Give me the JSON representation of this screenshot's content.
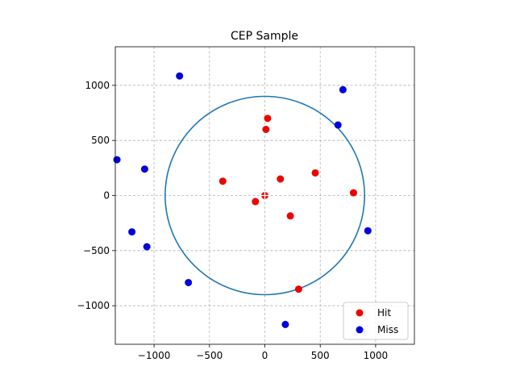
{
  "chart_data": {
    "type": "scatter",
    "title": "CEP Sample",
    "xlabel": "",
    "ylabel": "",
    "xlim": [
      -1350,
      1350
    ],
    "ylim": [
      -1350,
      1350
    ],
    "xticks": [
      -1000,
      -500,
      0,
      500,
      1000
    ],
    "yticks": [
      -1000,
      -500,
      0,
      500,
      1000
    ],
    "xtick_labels": [
      "−1000",
      "−500",
      "0",
      "500",
      "1000"
    ],
    "ytick_labels": [
      "−1000",
      "−500",
      "0",
      "500",
      "1000"
    ],
    "grid": true,
    "legend_position": "lower-right",
    "circle": {
      "center": [
        0,
        0
      ],
      "radius": 900,
      "color": "#1f77b4"
    },
    "center_marker": {
      "x": 0,
      "y": 0,
      "symbol": "+"
    },
    "series": [
      {
        "name": "Hit",
        "color": "#ee0000",
        "points": [
          [
            25,
            700
          ],
          [
            10,
            600
          ],
          [
            -380,
            130
          ],
          [
            140,
            150
          ],
          [
            455,
            205
          ],
          [
            -85,
            -55
          ],
          [
            0,
            0
          ],
          [
            230,
            -185
          ],
          [
            800,
            25
          ],
          [
            305,
            -850
          ]
        ]
      },
      {
        "name": "Miss",
        "color": "#0000dd",
        "points": [
          [
            -770,
            1085
          ],
          [
            705,
            960
          ],
          [
            660,
            640
          ],
          [
            -1335,
            325
          ],
          [
            -1085,
            240
          ],
          [
            -1200,
            -330
          ],
          [
            -1065,
            -465
          ],
          [
            -690,
            -790
          ],
          [
            930,
            -320
          ],
          [
            185,
            -1170
          ]
        ]
      }
    ]
  }
}
